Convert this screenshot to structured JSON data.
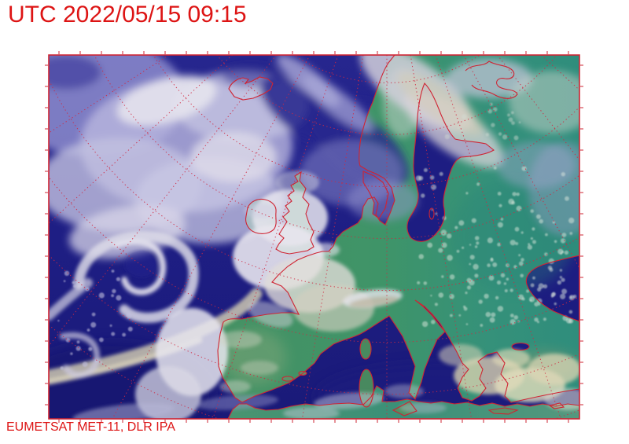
{
  "header": {
    "timestamp": "UTC 2022/05/15 09:15"
  },
  "footer": {
    "credit": "EUMETSAT MET-11, DLR IPA"
  },
  "colors": {
    "text_red": "#dd1414",
    "coast_red": "#cf2433",
    "graticule_red": "#d02840",
    "ocean": "#20208a",
    "land_green": "#3f9468",
    "cloud_white": "#e8e6ee",
    "cloud_beige": "#d6cfae",
    "cloud_lavender": "#9b99d6"
  }
}
